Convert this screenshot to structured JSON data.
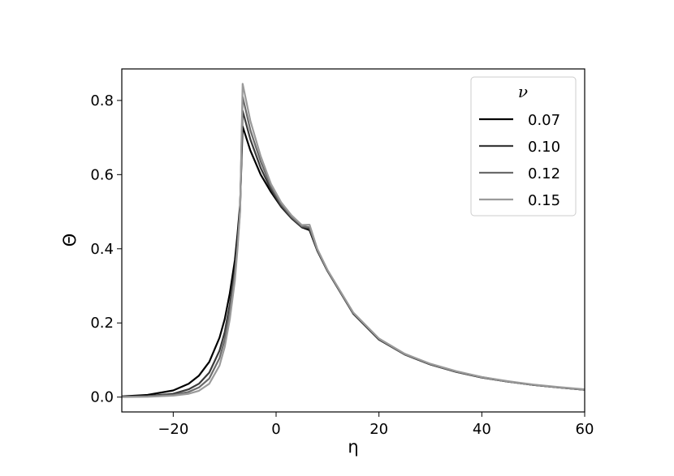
{
  "chart_data": {
    "type": "line",
    "xlabel": "η",
    "ylabel": "Θ",
    "xlim": [
      -30,
      60
    ],
    "ylim": [
      -0.04,
      0.885
    ],
    "xticks": [
      -20,
      0,
      20,
      40,
      60
    ],
    "xtick_labels": [
      "−20",
      "0",
      "20",
      "40",
      "60"
    ],
    "yticks": [
      0.0,
      0.2,
      0.4,
      0.6,
      0.8
    ],
    "ytick_labels": [
      "0.0",
      "0.2",
      "0.4",
      "0.6",
      "0.8"
    ],
    "grid": false,
    "legend": {
      "title": "ν",
      "placement": "top-right"
    },
    "x": [
      -30,
      -25,
      -20,
      -17,
      -15,
      -13,
      -11,
      -10,
      -9,
      -8,
      -7.5,
      -7,
      -6.5,
      -5,
      -3,
      -1,
      1,
      3,
      5,
      6.5,
      8,
      10,
      15,
      20,
      25,
      30,
      35,
      40,
      45,
      50,
      55,
      60
    ],
    "series": [
      {
        "name": "0.07",
        "color": "#000000",
        "values": [
          0.002,
          0.006,
          0.018,
          0.036,
          0.058,
          0.095,
          0.16,
          0.21,
          0.28,
          0.37,
          0.44,
          0.52,
          0.73,
          0.665,
          0.6,
          0.553,
          0.513,
          0.482,
          0.458,
          0.45,
          0.395,
          0.34,
          0.225,
          0.155,
          0.115,
          0.088,
          0.068,
          0.053,
          0.042,
          0.033,
          0.026,
          0.02
        ]
      },
      {
        "name": "0.10",
        "color": "#3a3a3a",
        "values": [
          0.001,
          0.003,
          0.009,
          0.021,
          0.036,
          0.066,
          0.125,
          0.175,
          0.25,
          0.345,
          0.42,
          0.51,
          0.772,
          0.695,
          0.618,
          0.56,
          0.515,
          0.483,
          0.459,
          0.454,
          0.396,
          0.341,
          0.226,
          0.156,
          0.115,
          0.088,
          0.068,
          0.053,
          0.042,
          0.033,
          0.026,
          0.02
        ]
      },
      {
        "name": "0.12",
        "color": "#6b6b6b",
        "values": [
          0.001,
          0.002,
          0.006,
          0.014,
          0.026,
          0.05,
          0.105,
          0.155,
          0.23,
          0.33,
          0.41,
          0.505,
          0.81,
          0.72,
          0.635,
          0.568,
          0.52,
          0.486,
          0.461,
          0.458,
          0.398,
          0.342,
          0.227,
          0.157,
          0.116,
          0.089,
          0.069,
          0.054,
          0.042,
          0.033,
          0.026,
          0.02
        ]
      },
      {
        "name": "0.15",
        "color": "#9a9a9a",
        "values": [
          0.0,
          0.001,
          0.004,
          0.009,
          0.017,
          0.036,
          0.085,
          0.135,
          0.21,
          0.315,
          0.4,
          0.5,
          0.845,
          0.745,
          0.65,
          0.575,
          0.525,
          0.49,
          0.464,
          0.465,
          0.4,
          0.343,
          0.228,
          0.158,
          0.117,
          0.09,
          0.07,
          0.054,
          0.043,
          0.034,
          0.027,
          0.021
        ]
      }
    ]
  }
}
